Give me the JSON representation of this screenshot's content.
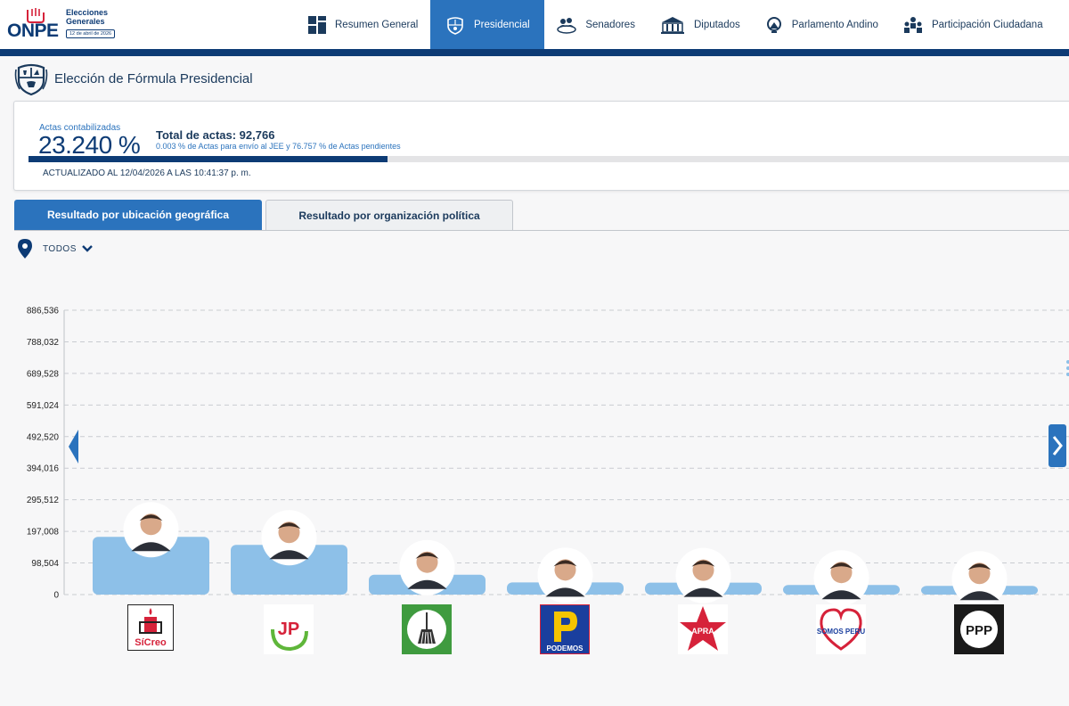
{
  "header": {
    "logo_text": "ONPE",
    "logo_subtitle": "Elecciones Generales",
    "logo_date": "12 de abril de 2026",
    "nav": [
      {
        "label": "Resumen General",
        "icon": "grid-icon",
        "active": false
      },
      {
        "label": "Presidencial",
        "icon": "peru-emblem-icon",
        "active": true
      },
      {
        "label": "Senadores",
        "icon": "senate-icon",
        "active": false
      },
      {
        "label": "Diputados",
        "icon": "congress-building-icon",
        "active": false
      },
      {
        "label": "Parlamento Andino",
        "icon": "andean-parliament-icon",
        "active": false
      },
      {
        "label": "Participación Ciudadana",
        "icon": "people-icon",
        "active": false
      }
    ]
  },
  "page": {
    "title": "Elección de Fórmula Presidencial"
  },
  "progress": {
    "actas_label": "Actas contabilizadas",
    "actas_value": "23.240 %",
    "actas_fraction": 0.2324,
    "total_actas": "Total de actas: 92,766",
    "detail": "0.003 % de Actas para envío al JEE y 76.757 % de Actas pendientes",
    "updated": "ACTUALIZADO AL 12/04/2026 A LAS 10:41:37 p. m."
  },
  "tabs": [
    {
      "label": "Resultado por ubicación geográfica",
      "active": true
    },
    {
      "label": "Resultado por organización política",
      "active": false
    }
  ],
  "filter": {
    "label": "TODOS"
  },
  "chart_data": {
    "type": "bar",
    "categories": [
      "SíCreo",
      "JP",
      "Partido (escoba)",
      "PODEMOS",
      "APRA",
      "SOMOS PERU",
      "PPP"
    ],
    "values": [
      180000,
      155000,
      62000,
      38000,
      37000,
      30000,
      27000
    ],
    "y_ticks": [
      "0",
      "98,504",
      "197,008",
      "295,512",
      "394,016",
      "492,520",
      "591,024",
      "689,528",
      "788,032",
      "886,536"
    ],
    "ylim": [
      0,
      886536
    ],
    "grid": true,
    "bar_color": "#8dc0e8"
  },
  "party_logos": [
    {
      "name": "SíCreo",
      "text": "SíCreo",
      "icon": "sicreo-candle-icon"
    },
    {
      "name": "JP",
      "text": "JP",
      "icon": "jp-logo-icon"
    },
    {
      "name": "Partido (escoba)",
      "text": "",
      "icon": "broom-logo-icon"
    },
    {
      "name": "PODEMOS",
      "text": "PODEMOS",
      "icon": "podemos-logo-icon"
    },
    {
      "name": "APRA",
      "text": "APRA",
      "icon": "apra-star-icon"
    },
    {
      "name": "SOMOS PERU",
      "text": "SOMOS PERU",
      "icon": "somos-peru-heart-icon"
    },
    {
      "name": "PPP",
      "text": "PPP",
      "icon": "ppp-logo-icon"
    }
  ]
}
